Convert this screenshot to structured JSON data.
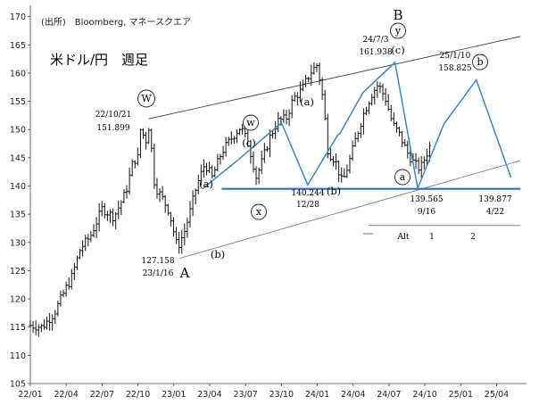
{
  "chart_data": {
    "type": "candlestick",
    "title": "米ドル/円　週足",
    "source": "(出所)　Bloomberg, マネースクエア",
    "y_ticks": [
      "105",
      "110",
      "115",
      "120",
      "125",
      "130",
      "135",
      "140",
      "145",
      "150",
      "155",
      "160",
      "165",
      "170"
    ],
    "ylim": [
      105,
      172
    ],
    "x_ticks": [
      "22/01",
      "22/04",
      "22/07",
      "22/10",
      "23/01",
      "23/04",
      "23/07",
      "23/10",
      "24/01",
      "24/04",
      "24/07",
      "24/10",
      "25/01",
      "25/04"
    ],
    "grid": false,
    "anchors": [
      {
        "t": 0.0,
        "v": 115.3
      },
      {
        "t": 1.0,
        "v": 115.0
      },
      {
        "t": 2.0,
        "v": 117.5
      },
      {
        "t": 3.0,
        "v": 122.0
      },
      {
        "t": 3.4,
        "v": 123.5
      },
      {
        "t": 4.2,
        "v": 129.0
      },
      {
        "t": 5.0,
        "v": 131.0
      },
      {
        "t": 6.0,
        "v": 136.0
      },
      {
        "t": 7.0,
        "v": 134.5
      },
      {
        "t": 8.0,
        "v": 139.0
      },
      {
        "t": 8.6,
        "v": 144.5
      },
      {
        "t": 9.0,
        "v": 145.0
      },
      {
        "t": 9.2,
        "v": 150.0
      },
      {
        "t": 9.7,
        "v": 148.0
      },
      {
        "t": 9.95,
        "v": 151.0
      },
      {
        "t": 10.4,
        "v": 140.0
      },
      {
        "t": 11.0,
        "v": 138.0
      },
      {
        "t": 11.6,
        "v": 135.5
      },
      {
        "t": 12.3,
        "v": 129.0
      },
      {
        "t": 12.9,
        "v": 132.0
      },
      {
        "t": 13.3,
        "v": 135.0
      },
      {
        "t": 13.9,
        "v": 140.0
      },
      {
        "t": 14.6,
        "v": 144.0
      },
      {
        "t": 15.2,
        "v": 141.5
      },
      {
        "t": 16.0,
        "v": 146.0
      },
      {
        "t": 17.0,
        "v": 149.0
      },
      {
        "t": 17.6,
        "v": 150.5
      },
      {
        "t": 18.3,
        "v": 147.0
      },
      {
        "t": 18.9,
        "v": 141.5
      },
      {
        "t": 19.4,
        "v": 144.5
      },
      {
        "t": 20.0,
        "v": 148.5
      },
      {
        "t": 20.7,
        "v": 151.5
      },
      {
        "t": 21.4,
        "v": 152.0
      },
      {
        "t": 22.0,
        "v": 155.5
      },
      {
        "t": 22.7,
        "v": 157.0
      },
      {
        "t": 23.4,
        "v": 160.0
      },
      {
        "t": 24.0,
        "v": 161.5
      },
      {
        "t": 24.5,
        "v": 155.0
      },
      {
        "t": 24.9,
        "v": 146.0
      },
      {
        "t": 25.5,
        "v": 144.5
      },
      {
        "t": 26.1,
        "v": 140.5
      },
      {
        "t": 26.7,
        "v": 144.5
      },
      {
        "t": 27.3,
        "v": 149.0
      },
      {
        "t": 27.9,
        "v": 153.0
      },
      {
        "t": 28.6,
        "v": 156.5
      },
      {
        "t": 29.1,
        "v": 158.0
      },
      {
        "t": 29.7,
        "v": 155.5
      },
      {
        "t": 30.3,
        "v": 151.0
      },
      {
        "t": 30.9,
        "v": 149.0
      },
      {
        "t": 31.5,
        "v": 146.0
      },
      {
        "t": 32.1,
        "v": 144.0
      },
      {
        "t": 32.6,
        "v": 143.0
      },
      {
        "t": 33.0,
        "v": 145.0
      },
      {
        "t": 33.4,
        "v": 147.0
      }
    ],
    "annotations": [
      {
        "id": "source",
        "text": "(出所)　Bloomberg, マネースクエア"
      },
      {
        "id": "title",
        "text": "米ドル/円　週足"
      },
      {
        "id": "hi_2210_date",
        "text": "22/10/21",
        "color": "#000000"
      },
      {
        "id": "hi_2210_val",
        "text": "151.899",
        "color": "#000000"
      },
      {
        "id": "lo_2301_val",
        "text": "127.158",
        "color": "#000000"
      },
      {
        "id": "lo_2301_date",
        "text": "23/1/16",
        "color": "#000000"
      },
      {
        "id": "lo_2312_val",
        "text": "140.244",
        "color": "#000000"
      },
      {
        "id": "lo_2312_date",
        "text": "12/28",
        "color": "#000000"
      },
      {
        "id": "hi_2407_date",
        "text": "24/7/3",
        "color": "#000000"
      },
      {
        "id": "hi_2407_val",
        "text": "161.938",
        "color": "#000000"
      },
      {
        "id": "hi_2501_date",
        "text": "25/1/10",
        "color": "#000000"
      },
      {
        "id": "hi_2501_val",
        "text": "158.825",
        "color": "#000000"
      },
      {
        "id": "lo_2409_val",
        "text": "139.565",
        "color": "#e0201c"
      },
      {
        "id": "lo_2409_date",
        "text": "9/16",
        "color": "#e0201c"
      },
      {
        "id": "lo_2504_val",
        "text": "139.877",
        "color": "#2a6fb8"
      },
      {
        "id": "lo_2504_date",
        "text": "4/22",
        "color": "#2a6fb8"
      },
      {
        "id": "alt_label",
        "text": "Alt",
        "color": "#000000"
      },
      {
        "id": "alt_1",
        "text": "1",
        "color": "#000000"
      },
      {
        "id": "alt_2",
        "text": "2",
        "color": "#000000"
      },
      {
        "id": "wave_A",
        "text": "A"
      },
      {
        "id": "wave_B",
        "text": "B"
      },
      {
        "id": "a_2303",
        "text": "(a)"
      },
      {
        "id": "b_2302",
        "text": "(b)"
      },
      {
        "id": "c_2307",
        "text": "(c)"
      },
      {
        "id": "a_2311",
        "text": "(a)"
      },
      {
        "id": "b_2312",
        "text": "(b)"
      },
      {
        "id": "c_2407",
        "text": "(c)"
      },
      {
        "id": "W_2210",
        "text": "W"
      },
      {
        "id": "w_2307",
        "text": "w"
      },
      {
        "id": "x_2309",
        "text": "x"
      },
      {
        "id": "y_2407",
        "text": "y"
      },
      {
        "id": "a_2409",
        "text": "a"
      },
      {
        "id": "b_2501",
        "text": "b"
      }
    ]
  }
}
